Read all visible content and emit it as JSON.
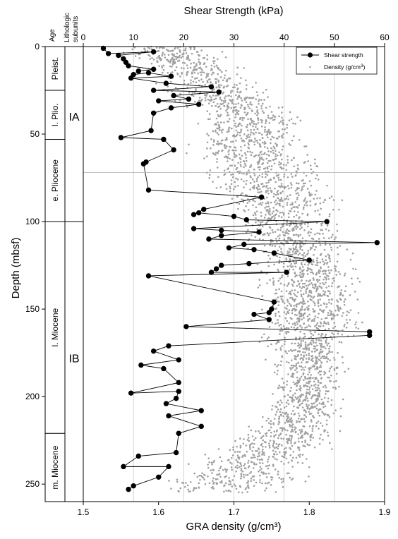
{
  "chart_data": {
    "type": "scatter",
    "title": "",
    "top_axis": {
      "label": "Shear Strength (kPa)",
      "range": [
        0,
        60
      ],
      "ticks": [
        0,
        10,
        20,
        30,
        40,
        50,
        60
      ]
    },
    "bottom_axis": {
      "label": "GRA density (g/cm³)",
      "range": [
        1.5,
        1.9
      ],
      "ticks": [
        "1.5",
        "1.6",
        "1.7",
        "1.8",
        "1.9"
      ]
    },
    "y_axis": {
      "label": "Depth (mbsf)",
      "range": [
        0,
        260
      ],
      "inverted": true,
      "ticks": [
        0,
        50,
        100,
        150,
        200,
        250
      ]
    },
    "grid": true,
    "reference_line_depth": 72,
    "columns": {
      "age_header": "Age",
      "subunit_header_line1": "Lithologic",
      "subunit_header_line2": "subunits"
    },
    "age_intervals": [
      {
        "label": "Pleist.",
        "top": 0,
        "bottom": 25
      },
      {
        "label": "l. Plio.",
        "top": 25,
        "bottom": 53
      },
      {
        "label": "e. Pliocene",
        "top": 53,
        "bottom": 100
      },
      {
        "label": "l. Miocene",
        "top": 100,
        "bottom": 221
      },
      {
        "label": "m. Miocene",
        "top": 221,
        "bottom": 260
      }
    ],
    "subunits": [
      {
        "label": "IA",
        "top": 0,
        "bottom": 100
      },
      {
        "label": "IB",
        "top": 100,
        "bottom": 260
      }
    ],
    "legend": {
      "position": "top-right",
      "shear_label": "Shear strength",
      "density_label": "Density (g/cm",
      "density_unit_sup": "3",
      "density_label_end": ")"
    },
    "series": [
      {
        "name": "Shear strength",
        "color": "#000000",
        "points": [
          [
            4,
            1
          ],
          [
            5,
            4
          ],
          [
            14,
            3
          ],
          [
            7,
            5
          ],
          [
            8,
            7
          ],
          [
            8.5,
            9
          ],
          [
            9,
            11
          ],
          [
            14,
            13
          ],
          [
            11,
            14
          ],
          [
            10,
            16
          ],
          [
            13,
            15
          ],
          [
            17.5,
            17
          ],
          [
            9.5,
            18
          ],
          [
            16.5,
            21
          ],
          [
            25.5,
            23
          ],
          [
            14,
            25
          ],
          [
            27,
            26
          ],
          [
            18,
            28
          ],
          [
            21,
            30
          ],
          [
            15,
            31
          ],
          [
            23,
            33
          ],
          [
            17.5,
            35
          ],
          [
            14,
            38
          ],
          [
            13.5,
            48
          ],
          [
            7.5,
            52
          ],
          [
            16,
            53
          ],
          [
            18,
            59
          ],
          [
            12.5,
            66
          ],
          [
            12,
            67
          ],
          [
            13,
            82
          ],
          [
            35.5,
            86
          ],
          [
            24,
            93
          ],
          [
            22,
            96
          ],
          [
            23,
            95
          ],
          [
            30,
            97
          ],
          [
            32.5,
            99
          ],
          [
            48.5,
            100
          ],
          [
            22,
            104
          ],
          [
            27.5,
            105
          ],
          [
            35,
            106
          ],
          [
            27.5,
            108
          ],
          [
            25,
            110
          ],
          [
            58.5,
            112
          ],
          [
            32,
            113
          ],
          [
            29,
            115
          ],
          [
            34,
            116
          ],
          [
            38,
            118
          ],
          [
            45,
            122
          ],
          [
            33,
            124
          ],
          [
            27.5,
            125
          ],
          [
            26.5,
            127
          ],
          [
            25.5,
            129
          ],
          [
            40.5,
            129
          ],
          [
            13,
            131
          ],
          [
            38,
            146
          ],
          [
            37.5,
            150
          ],
          [
            37,
            152
          ],
          [
            34,
            153
          ],
          [
            37,
            156
          ],
          [
            20.5,
            160
          ],
          [
            57,
            163
          ],
          [
            57,
            165
          ],
          [
            17,
            171
          ],
          [
            14,
            174
          ],
          [
            19,
            179
          ],
          [
            11.5,
            182
          ],
          [
            16,
            184
          ],
          [
            19,
            192
          ],
          [
            9.5,
            198
          ],
          [
            19,
            197
          ],
          [
            18.5,
            201
          ],
          [
            16.5,
            204
          ],
          [
            23.5,
            208
          ],
          [
            17,
            211
          ],
          [
            23.5,
            217
          ],
          [
            19,
            221
          ],
          [
            18.5,
            232
          ],
          [
            11,
            234
          ],
          [
            8,
            240
          ],
          [
            17,
            240
          ],
          [
            15,
            246
          ],
          [
            10,
            251
          ],
          [
            9,
            253
          ]
        ]
      },
      {
        "name": "Density (g/cm3)",
        "color": "#a0a0a0",
        "profile": [
          {
            "depth": 0,
            "mean": 1.61,
            "spread": 0.05
          },
          {
            "depth": 20,
            "mean": 1.66,
            "spread": 0.06
          },
          {
            "depth": 40,
            "mean": 1.72,
            "spread": 0.06
          },
          {
            "depth": 60,
            "mean": 1.72,
            "spread": 0.07
          },
          {
            "depth": 80,
            "mean": 1.75,
            "spread": 0.07
          },
          {
            "depth": 100,
            "mean": 1.77,
            "spread": 0.06
          },
          {
            "depth": 130,
            "mean": 1.8,
            "spread": 0.05
          },
          {
            "depth": 160,
            "mean": 1.8,
            "spread": 0.06
          },
          {
            "depth": 180,
            "mean": 1.8,
            "spread": 0.04
          },
          {
            "depth": 200,
            "mean": 1.8,
            "spread": 0.04
          },
          {
            "depth": 220,
            "mean": 1.78,
            "spread": 0.05
          },
          {
            "depth": 240,
            "mean": 1.72,
            "spread": 0.08
          },
          {
            "depth": 255,
            "mean": 1.68,
            "spread": 0.08
          }
        ]
      }
    ]
  }
}
